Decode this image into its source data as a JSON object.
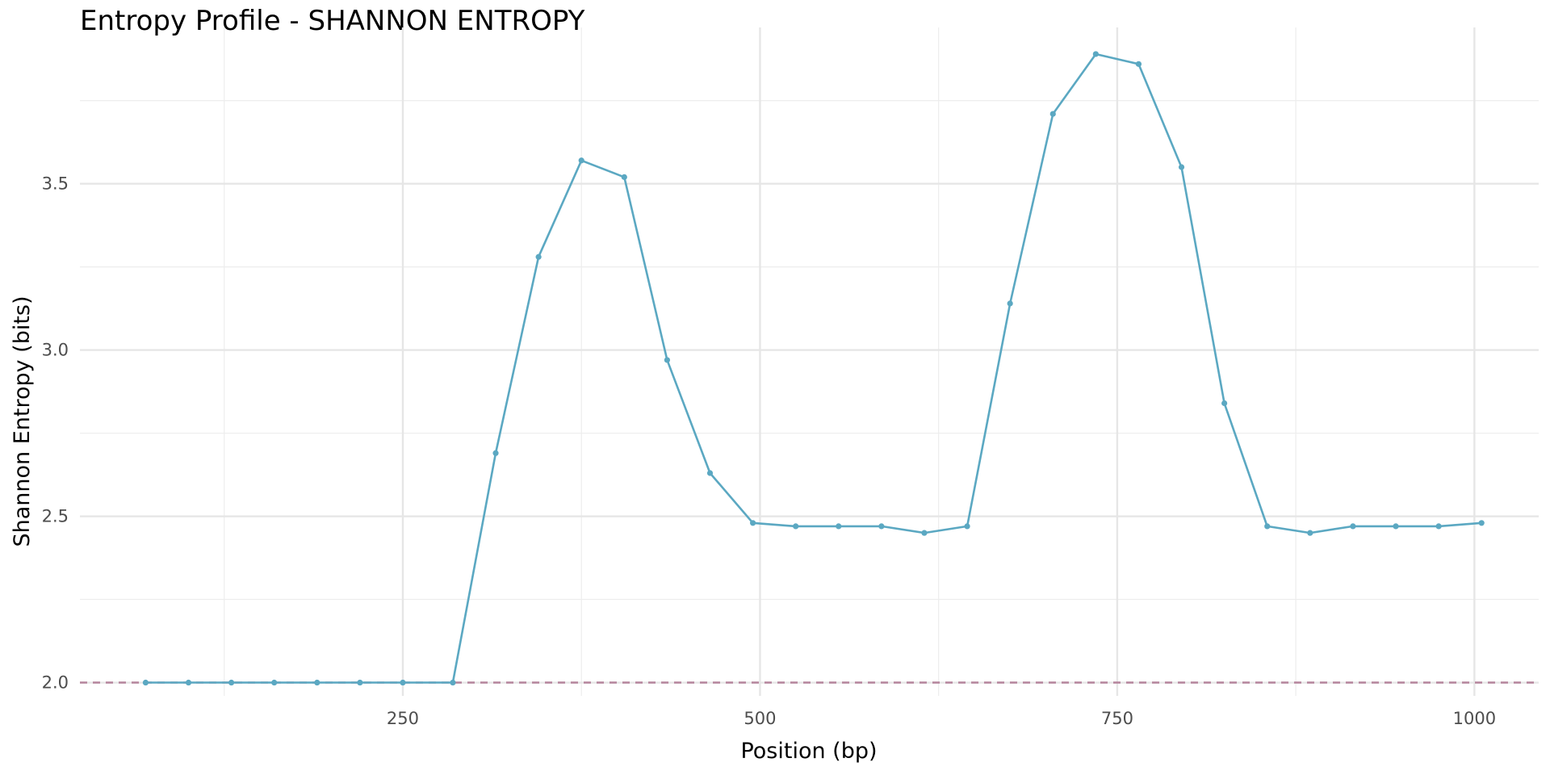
{
  "chart_data": {
    "type": "line",
    "title": "Entropy Profile - SHANNON ENTROPY",
    "xlabel": "Position (bp)",
    "ylabel": "Shannon Entropy (bits)",
    "xlim": [
      24,
      1045
    ],
    "ylim": [
      1.96,
      3.97
    ],
    "x_ticks": [
      250,
      500,
      750,
      1000
    ],
    "x_minor_ticks": [
      125,
      375,
      625,
      875
    ],
    "y_ticks": [
      2.0,
      2.5,
      3.0,
      3.5
    ],
    "y_minor_ticks": [
      2.25,
      2.75,
      3.25,
      3.75
    ],
    "grid": true,
    "series": [
      {
        "color": "#5ba8c2",
        "x": [
          70,
          100,
          130,
          160,
          190,
          220,
          250,
          285,
          315,
          345,
          375,
          405,
          435,
          465,
          495,
          525,
          555,
          585,
          615,
          645,
          675,
          705,
          735,
          765,
          795,
          825,
          855,
          885,
          915,
          945,
          975,
          1005
        ],
        "values": [
          2.0,
          2.0,
          2.0,
          2.0,
          2.0,
          2.0,
          2.0,
          2.0,
          2.69,
          3.28,
          3.57,
          3.52,
          2.97,
          2.63,
          2.48,
          2.47,
          2.47,
          2.47,
          2.45,
          2.47,
          3.14,
          3.71,
          3.89,
          3.86,
          3.55,
          2.84,
          2.47,
          2.45,
          2.47,
          2.47,
          2.47,
          2.48
        ]
      }
    ],
    "reference_line": {
      "y": 2.0,
      "style": "dashed",
      "color": "#b07a95"
    }
  }
}
